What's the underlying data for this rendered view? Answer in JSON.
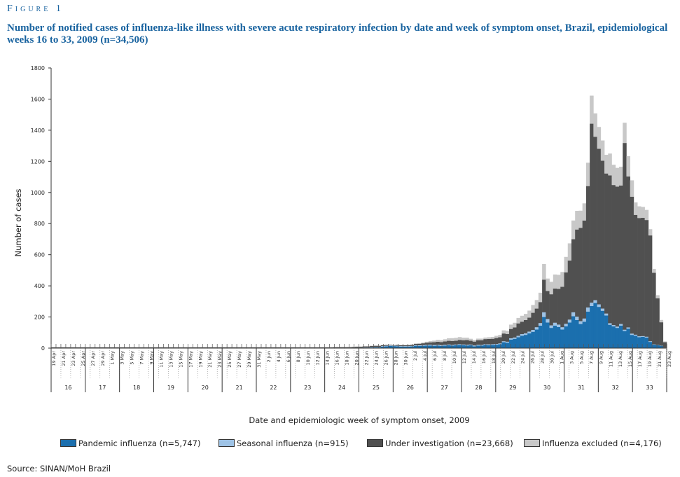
{
  "figure_label": "Figure 1",
  "title": "Number of notified cases of influenza-like illness with severe acute respiratory infection by date and week of symptom onset, Brazil, epidemiological weeks 16 to 33, 2009 (n=34,506)",
  "source": "Source: SINAN/MoH Brazil",
  "colors": {
    "pandemic": "#1b6fae",
    "seasonal": "#9ec3e6",
    "investigation": "#505050",
    "excluded": "#c8c8c8",
    "title": "#1a64a0"
  },
  "chart_data": {
    "type": "bar",
    "stacked": true,
    "ylabel": "Number of cases",
    "xlabel": "Date and epidemiologic week of symptom onset, 2009",
    "ylim": [
      0,
      1800
    ],
    "yticks": [
      0,
      200,
      400,
      600,
      800,
      1000,
      1200,
      1400,
      1600,
      1800
    ],
    "date_ticks": [
      "19 Apr",
      "21 Apr",
      "23 Apr",
      "25 Apr",
      "27 Apr",
      "29 Apr",
      "1 May",
      "3 May",
      "5 May",
      "7 May",
      "9 May",
      "11 May",
      "13 May",
      "15 May",
      "17 May",
      "19 May",
      "21 May",
      "23 May",
      "25 May",
      "27 May",
      "29 May",
      "31 May",
      "2 Jun",
      "4 Jun",
      "6 Jun",
      "8 Jun",
      "10 Jun",
      "12 Jun",
      "14 Jun",
      "16 Jun",
      "18 Jun",
      "20 Jun",
      "22 Jun",
      "24 Jun",
      "26 Jun",
      "28 Jun",
      "30 Jun",
      "2 Jul",
      "4 Jul",
      "6 Jul",
      "8 Jul",
      "10 Jul",
      "12 Jul",
      "14 Jul",
      "16 Jul",
      "18 Jul",
      "20 Jul",
      "22 Jul",
      "24 Jul",
      "26 Jul",
      "28 Jul",
      "30 Jul",
      "1 Aug",
      "3 Aug",
      "5 Aug",
      "7 Aug",
      "9 Aug",
      "11 Aug",
      "13 Aug",
      "15 Aug",
      "17 Aug",
      "19 Aug",
      "21 Aug",
      "23 Aug"
    ],
    "weeks": [
      "16",
      "17",
      "18",
      "19",
      "20",
      "21",
      "22",
      "23",
      "24",
      "25",
      "26",
      "27",
      "28",
      "29",
      "30",
      "31",
      "32",
      "33"
    ],
    "legend": [
      {
        "key": "pandemic",
        "label": "Pandemic influenza (n=5,747)"
      },
      {
        "key": "seasonal",
        "label": "Seasonal influenza (n=915)"
      },
      {
        "key": "investigation",
        "label": "Under investigation (n=23,668)"
      },
      {
        "key": "excluded",
        "label": "Influenza excluded (n=4,176)"
      }
    ],
    "series": [
      {
        "name": "Pandemic influenza",
        "values": [
          0,
          0,
          0,
          0,
          0,
          0,
          0,
          0,
          0,
          0,
          0,
          0,
          0,
          0,
          0,
          0,
          0,
          0,
          0,
          0,
          0,
          0,
          0,
          0,
          0,
          0,
          0,
          0,
          0,
          0,
          0,
          0,
          0,
          0,
          0,
          0,
          0,
          0,
          0,
          0,
          0,
          0,
          0,
          0,
          0,
          0,
          0,
          0,
          0,
          0,
          0,
          0,
          0,
          0,
          0,
          0,
          0,
          0,
          0,
          0,
          0,
          0,
          0,
          0,
          0,
          0,
          0,
          0,
          0,
          0,
          0,
          0,
          0,
          0,
          0,
          0,
          0,
          0,
          0,
          0,
          0,
          0,
          0,
          2,
          2,
          3,
          3,
          4,
          5,
          5,
          10,
          12,
          14,
          13,
          12,
          10,
          10,
          10,
          11,
          15,
          14,
          15,
          16,
          17,
          15,
          16,
          14,
          16,
          18,
          16,
          18,
          20,
          18,
          17,
          18,
          12,
          16,
          16,
          20,
          19,
          20,
          22,
          25,
          38,
          35,
          55,
          60,
          70,
          80,
          85,
          95,
          105,
          120,
          145,
          200,
          165,
          130,
          145,
          135,
          120,
          140,
          165,
          205,
          180,
          155,
          170,
          235,
          270,
          290,
          265,
          240,
          210,
          150,
          140,
          130,
          145,
          110,
          125,
          85,
          80,
          70,
          72,
          68,
          40,
          22,
          18,
          15,
          3
        ]
      },
      {
        "name": "Seasonal influenza",
        "values": [
          0,
          0,
          0,
          0,
          0,
          0,
          0,
          0,
          0,
          0,
          0,
          0,
          0,
          0,
          0,
          0,
          0,
          0,
          0,
          0,
          0,
          0,
          0,
          0,
          0,
          0,
          0,
          0,
          0,
          0,
          0,
          0,
          0,
          0,
          0,
          0,
          0,
          0,
          0,
          0,
          0,
          0,
          0,
          0,
          0,
          0,
          0,
          0,
          0,
          0,
          0,
          0,
          0,
          0,
          0,
          0,
          0,
          0,
          0,
          0,
          0,
          0,
          0,
          0,
          0,
          0,
          0,
          0,
          0,
          0,
          0,
          0,
          0,
          0,
          0,
          0,
          0,
          0,
          0,
          0,
          0,
          0,
          0,
          1,
          1,
          1,
          1,
          2,
          2,
          2,
          3,
          3,
          3,
          3,
          3,
          3,
          3,
          3,
          3,
          4,
          4,
          4,
          5,
          5,
          5,
          5,
          5,
          5,
          5,
          5,
          5,
          5,
          5,
          5,
          5,
          5,
          5,
          5,
          5,
          5,
          5,
          5,
          5,
          6,
          6,
          8,
          8,
          9,
          10,
          10,
          11,
          12,
          14,
          16,
          30,
          22,
          16,
          18,
          16,
          14,
          16,
          18,
          25,
          22,
          18,
          20,
          26,
          22,
          18,
          16,
          14,
          12,
          10,
          8,
          8,
          10,
          8,
          8,
          8,
          6,
          6,
          5,
          5,
          4,
          2,
          2,
          1,
          0
        ]
      },
      {
        "name": "Under investigation",
        "values": [
          5,
          5,
          5,
          5,
          5,
          5,
          5,
          5,
          5,
          5,
          5,
          5,
          5,
          5,
          5,
          5,
          5,
          5,
          5,
          5,
          5,
          5,
          5,
          5,
          5,
          5,
          5,
          5,
          5,
          5,
          5,
          5,
          5,
          5,
          5,
          5,
          5,
          5,
          5,
          5,
          5,
          5,
          5,
          5,
          5,
          5,
          5,
          5,
          5,
          5,
          5,
          5,
          5,
          5,
          5,
          5,
          5,
          5,
          5,
          5,
          5,
          5,
          5,
          5,
          5,
          5,
          5,
          5,
          5,
          5,
          5,
          5,
          5,
          5,
          5,
          5,
          5,
          6,
          6,
          6,
          6,
          6,
          7,
          6,
          6,
          7,
          7,
          8,
          8,
          8,
          5,
          5,
          4,
          3,
          5,
          5,
          5,
          6,
          7,
          8,
          10,
          12,
          14,
          15,
          18,
          20,
          20,
          22,
          24,
          25,
          25,
          28,
          28,
          30,
          25,
          25,
          30,
          30,
          33,
          35,
          35,
          38,
          40,
          50,
          50,
          60,
          65,
          80,
          80,
          85,
          90,
          110,
          120,
          135,
          210,
          180,
          200,
          220,
          230,
          260,
          330,
          380,
          470,
          560,
          600,
          630,
          780,
          1150,
          1050,
          1000,
          950,
          900,
          950,
          900,
          900,
          890,
          1200,
          970,
          880,
          770,
          760,
          760,
          750,
          680,
          460,
          300,
          150,
          35
        ]
      },
      {
        "name": "Influenza excluded",
        "values": [
          0,
          0,
          0,
          0,
          0,
          0,
          0,
          0,
          0,
          0,
          0,
          0,
          0,
          0,
          0,
          0,
          0,
          0,
          0,
          0,
          0,
          0,
          0,
          0,
          0,
          0,
          0,
          0,
          0,
          0,
          0,
          0,
          0,
          0,
          0,
          0,
          0,
          0,
          0,
          0,
          0,
          0,
          0,
          0,
          0,
          0,
          0,
          0,
          0,
          0,
          0,
          0,
          0,
          0,
          0,
          0,
          0,
          0,
          0,
          0,
          0,
          0,
          0,
          0,
          0,
          0,
          0,
          0,
          0,
          0,
          0,
          0,
          0,
          0,
          0,
          0,
          0,
          0,
          0,
          0,
          0,
          0,
          0,
          1,
          1,
          1,
          1,
          2,
          2,
          2,
          2,
          2,
          2,
          2,
          2,
          2,
          2,
          2,
          2,
          3,
          4,
          5,
          6,
          8,
          10,
          12,
          12,
          14,
          16,
          18,
          18,
          18,
          16,
          15,
          12,
          10,
          10,
          10,
          10,
          11,
          12,
          14,
          15,
          20,
          20,
          28,
          30,
          35,
          38,
          40,
          45,
          50,
          55,
          60,
          100,
          80,
          80,
          90,
          90,
          95,
          100,
          110,
          120,
          120,
          110,
          110,
          150,
          180,
          150,
          140,
          130,
          120,
          140,
          130,
          120,
          120,
          130,
          130,
          105,
          80,
          75,
          70,
          65,
          40,
          25,
          20,
          15,
          5
        ]
      }
    ]
  }
}
